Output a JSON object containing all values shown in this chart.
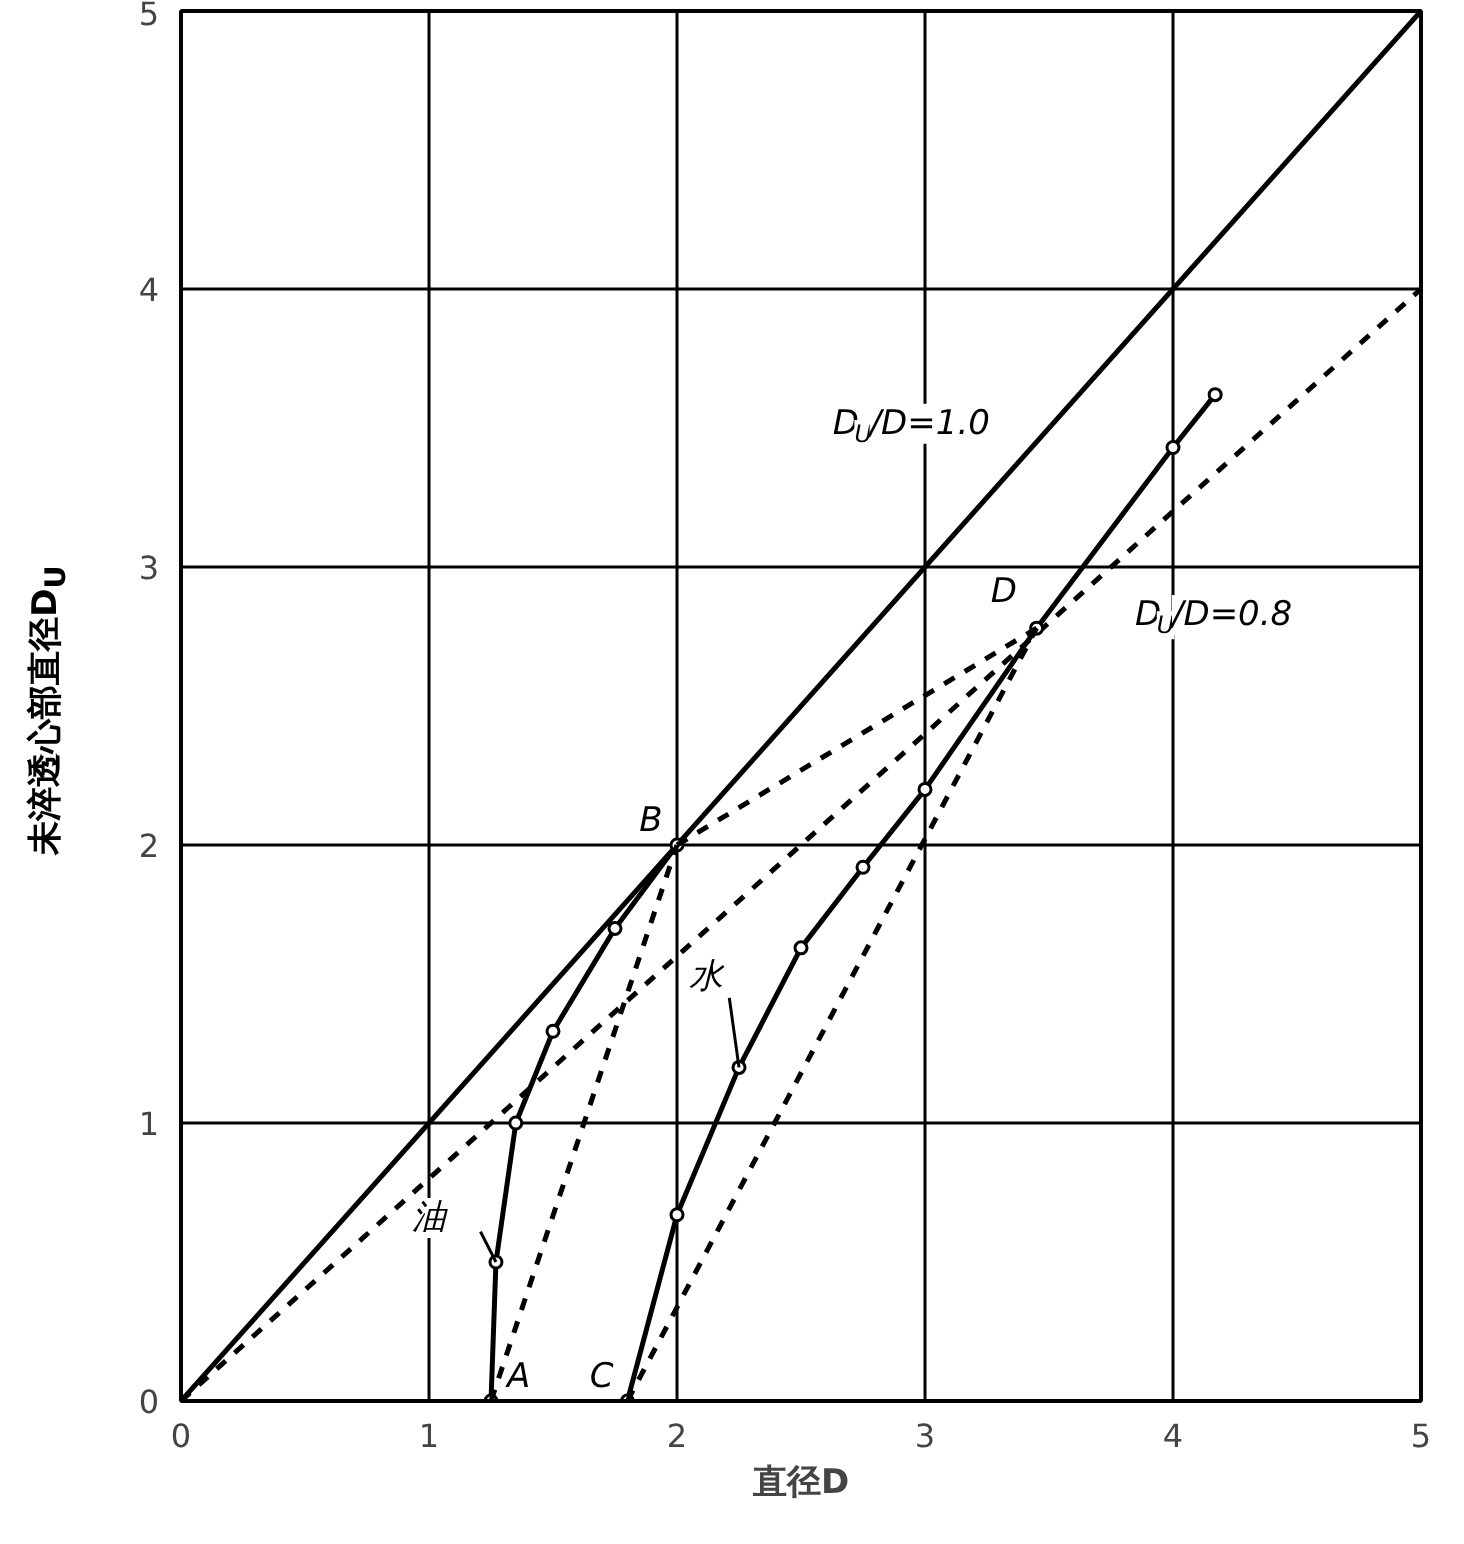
{
  "chart_data": {
    "type": "line",
    "xlabel": "直径D",
    "ylabel": "未淬透心部直径D$_{U}$",
    "xlim": [
      0,
      5
    ],
    "ylim": [
      0,
      5
    ],
    "xticks": [
      0,
      1,
      2,
      3,
      4,
      5
    ],
    "yticks": [
      0,
      1,
      2,
      3,
      4,
      5
    ],
    "grid": true,
    "series": [
      {
        "color": "#000000",
        "line_style": "solid",
        "x": [
          0,
          5
        ],
        "values": [
          0,
          5
        ]
      },
      {
        "color": "#000000",
        "line_style": "dashed",
        "x": [
          0,
          5
        ],
        "values": [
          0,
          4
        ]
      },
      {
        "color": "#000000",
        "line_style": "solid",
        "marker": "circle",
        "x": [
          1.25,
          1.27,
          1.35,
          1.5,
          1.75,
          2
        ],
        "values": [
          0,
          0.5,
          1.0,
          1.33,
          1.7,
          2
        ]
      },
      {
        "color": "#000000",
        "line_style": "solid",
        "marker": "circle",
        "x": [
          1.8,
          2,
          2.25,
          2.5,
          2.75,
          3,
          3.45,
          4,
          4.17
        ],
        "values": [
          0,
          0.67,
          1.2,
          1.63,
          1.92,
          2.2,
          2.78,
          3.43,
          3.62
        ]
      },
      {
        "color": "#000000",
        "line_style": "dashed",
        "x": [
          1.25,
          2
        ],
        "values": [
          0,
          2
        ]
      },
      {
        "color": "#000000",
        "line_style": "dashed",
        "x": [
          1.8,
          3.45
        ],
        "values": [
          0,
          2.78
        ]
      },
      {
        "color": "#000000",
        "line_style": "dashed",
        "x": [
          2,
          3.45
        ],
        "values": [
          2,
          2.78
        ]
      }
    ],
    "annotations": [
      {
        "text": "A",
        "x": 1.25,
        "y": 0
      },
      {
        "text": "B",
        "x": 2,
        "y": 2
      },
      {
        "text": "C",
        "x": 1.8,
        "y": 0
      },
      {
        "text": "D",
        "x": 3.45,
        "y": 2.78
      },
      {
        "text": "油",
        "x": 1.27,
        "y": 0.5
      },
      {
        "text": "水",
        "x": 2.25,
        "y": 1.2
      },
      {
        "text": "D$_{U}$/D=1.0",
        "x": 3.4,
        "y": 3.4
      },
      {
        "text": "D$_{U}$/D=0.8",
        "x": 3.75,
        "y": 3.0
      }
    ]
  }
}
